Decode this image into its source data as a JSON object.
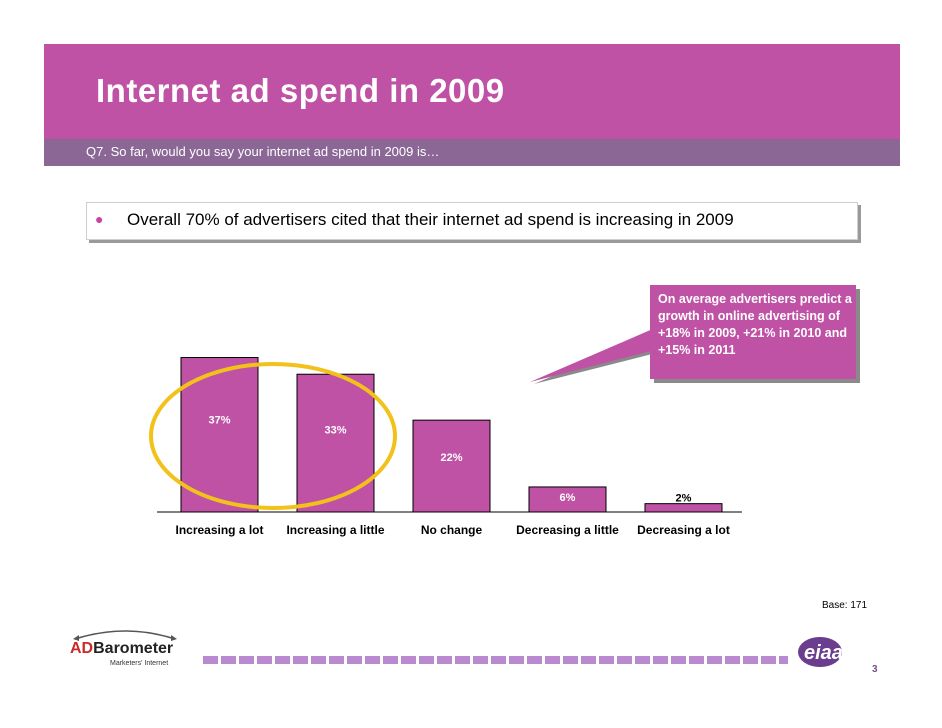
{
  "header": {
    "title": "Internet ad spend in 2009",
    "subtitle": "Q7. So far, would you say your internet ad spend in 2009 is…"
  },
  "bullet": {
    "text": "Overall 70% of advertisers cited that their internet ad spend is increasing in 2009"
  },
  "callout": {
    "text": "On average advertisers predict a growth in online advertising of +18% in 2009, +21% in 2010 and +15% in 2011"
  },
  "chart_data": {
    "type": "bar",
    "categories": [
      "Increasing a lot",
      "Increasing a little",
      "No change",
      "Decreasing a little",
      "Decreasing a lot"
    ],
    "values": [
      37,
      33,
      22,
      6,
      2
    ],
    "data_labels": [
      "37%",
      "33%",
      "22%",
      "6%",
      "2%"
    ],
    "title": "",
    "xlabel": "",
    "ylabel": "",
    "ylim": [
      0,
      40
    ],
    "grid": false,
    "bar_color": "#bf52a5",
    "highlight": {
      "categories": [
        "Increasing a lot",
        "Increasing a little"
      ],
      "color": "#f2c21b"
    }
  },
  "footer": {
    "base": "Base: 171",
    "page_number": "3",
    "logo_text_red": "AD",
    "logo_text_rest": "Barometer",
    "logo_sub": "Marketers' Internet",
    "brand_logo": "eiaa"
  },
  "colors": {
    "accent": "#bf52a5",
    "subbar": "#8b6796",
    "footer_bar": "#b98ad0"
  }
}
